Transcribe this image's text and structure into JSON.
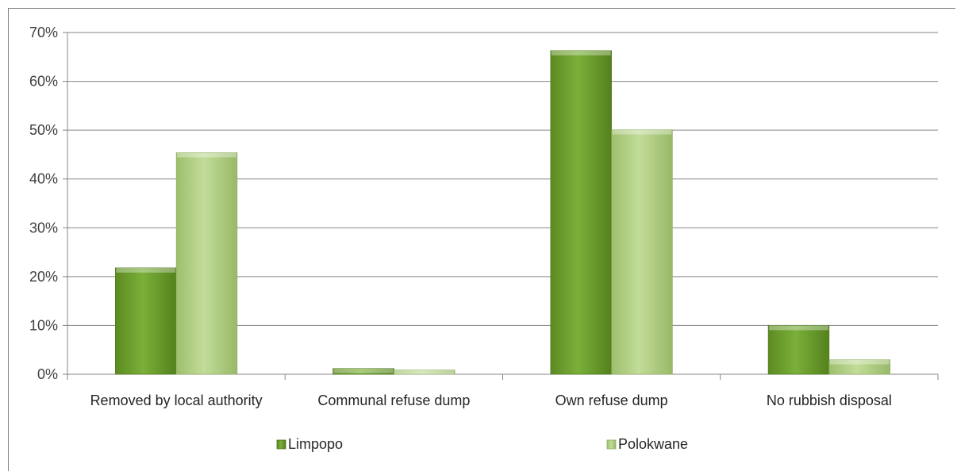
{
  "chart_data": {
    "type": "bar",
    "categories": [
      "Removed by local authority",
      "Communal refuse dump",
      "Own refuse dump",
      "No rubbish disposal"
    ],
    "series": [
      {
        "name": "Limpopo",
        "values": [
          21.8,
          1.2,
          66.3,
          10.0
        ],
        "color": "#6b9a2c"
      },
      {
        "name": "Polokwane",
        "values": [
          45.4,
          0.9,
          50.1,
          3.0
        ],
        "color": "#a9c97a"
      }
    ],
    "y_ticks": [
      "0%",
      "10%",
      "20%",
      "30%",
      "40%",
      "50%",
      "60%",
      "70%"
    ],
    "ylim": [
      0,
      70
    ],
    "grid": true,
    "legend": "bottom",
    "title": "",
    "xlabel": "",
    "ylabel": ""
  }
}
